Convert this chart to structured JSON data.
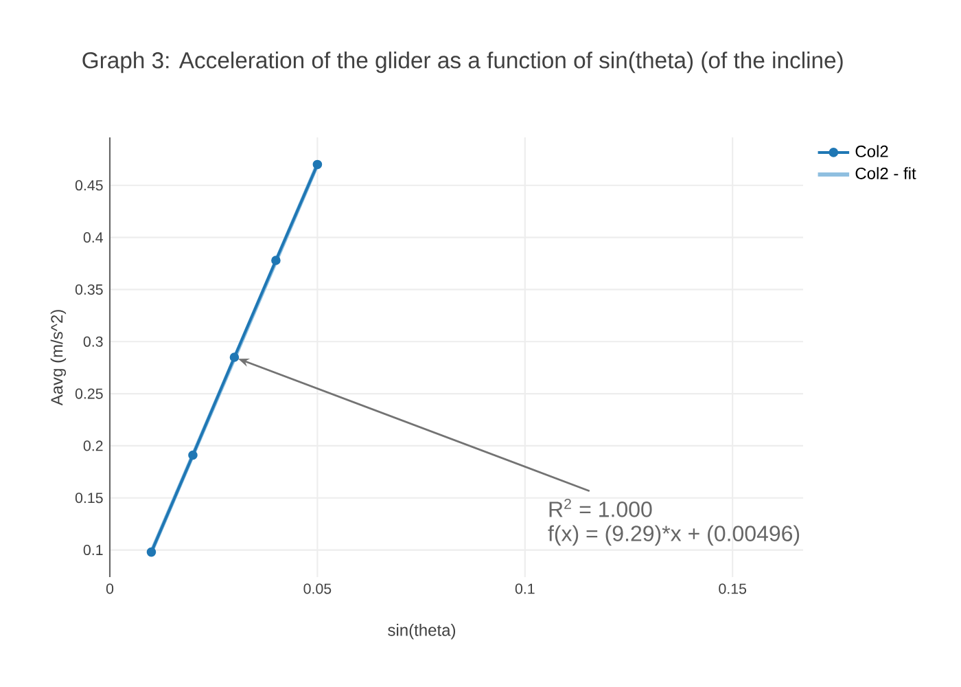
{
  "chart_data": {
    "type": "line",
    "title": "Graph 3: Acceleration of the glider as a function of sin(theta) (of the incline)",
    "xlabel": "sin(theta)",
    "ylabel": "Aavg (m/s^2)",
    "x": [
      0.01,
      0.02,
      0.03,
      0.04,
      0.05
    ],
    "series": [
      {
        "name": "Col2",
        "color": "#1f77b4",
        "values": [
          0.098,
          0.191,
          0.285,
          0.378,
          0.47
        ],
        "marker": "circle"
      },
      {
        "name": "Col2 - fit",
        "color": "#8fbfe0",
        "x": [
          0.01,
          0.05
        ],
        "values": [
          0.098,
          0.47
        ],
        "marker": "none"
      }
    ],
    "xlim": [
      0,
      0.167
    ],
    "ylim": [
      0.074,
      0.496
    ],
    "xticks": [
      0,
      0.05,
      0.1,
      0.15
    ],
    "yticks": [
      0.1,
      0.15,
      0.2,
      0.25,
      0.3,
      0.35,
      0.4,
      0.45
    ],
    "grid": true,
    "legend": "top right",
    "line_style": "solid",
    "annotations": [
      {
        "text": "R$^{2}$ = 1.000",
        "x": 0.03,
        "y": 0.285
      },
      "f(x) = (9.29)*x + (0.00496)"
    ]
  }
}
